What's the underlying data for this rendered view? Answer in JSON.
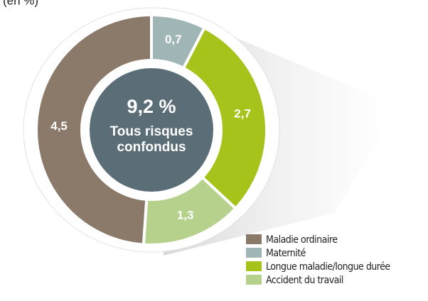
{
  "chart_data": {
    "type": "donut",
    "subtitle": "(en %)",
    "categories": [
      "Maladie ordinaire",
      "Maternité",
      "Longue maladie/longue durée",
      "Accident du travail"
    ],
    "values": [
      4.5,
      0.7,
      2.7,
      1.3
    ],
    "value_labels": [
      "4,5",
      "0,7",
      "2,7",
      "1,3"
    ],
    "colors": [
      "#8b7a6a",
      "#a0b6b6",
      "#a6c31b",
      "#b6d18c"
    ],
    "center_value": "9,2 %",
    "center_label": [
      "Tous risques",
      "confondus"
    ],
    "legend": "bottom-right"
  }
}
